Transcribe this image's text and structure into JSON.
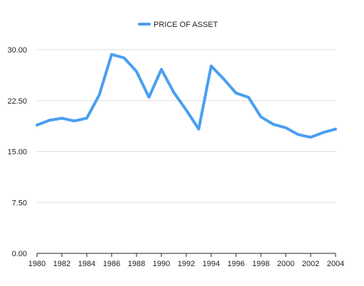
{
  "chart_data": {
    "type": "line",
    "legend_position": "top-center",
    "grid": true,
    "ylim": [
      0,
      30
    ],
    "yticks": [
      "0.00",
      "7.50",
      "15.00",
      "22.50",
      "30.00"
    ],
    "ytick_values": [
      0,
      7.5,
      15,
      22.5,
      30
    ],
    "xlim": [
      1980,
      2004
    ],
    "xticks": [
      "1980",
      "1982",
      "1984",
      "1986",
      "1988",
      "1990",
      "1992",
      "1994",
      "1996",
      "1998",
      "2000",
      "2002",
      "2004"
    ],
    "xtick_values": [
      1980,
      1982,
      1984,
      1986,
      1988,
      1990,
      1992,
      1994,
      1996,
      1998,
      2000,
      2002,
      2004
    ],
    "x": [
      1980,
      1981,
      1982,
      1983,
      1984,
      1985,
      1986,
      1987,
      1988,
      1989,
      1990,
      1991,
      1992,
      1993,
      1994,
      1995,
      1996,
      1997,
      1998,
      1999,
      2000,
      2001,
      2002,
      2003,
      2004
    ],
    "series": [
      {
        "name": "PRICE OF ASSET",
        "color": "#4a9ff0",
        "values": [
          18.9,
          19.6,
          19.9,
          19.5,
          19.9,
          23.3,
          29.3,
          28.8,
          26.8,
          23.0,
          27.1,
          23.7,
          21.1,
          18.3,
          27.6,
          25.7,
          23.6,
          23.0,
          20.1,
          19.0,
          18.5,
          17.5,
          17.1,
          17.8,
          18.3
        ]
      }
    ]
  }
}
